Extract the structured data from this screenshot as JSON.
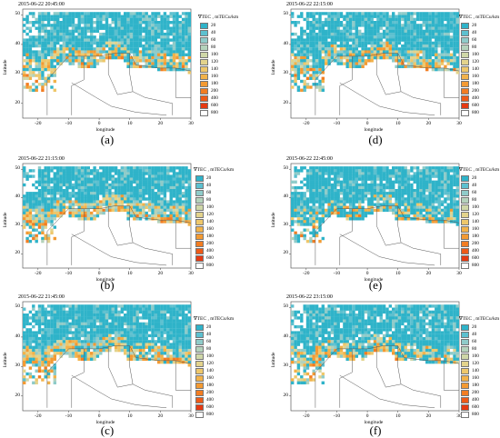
{
  "legend": {
    "title": "∇TEC , mTECu/km",
    "levels": [
      {
        "label": "20",
        "color": "#2fb3c9"
      },
      {
        "label": "40",
        "color": "#5dc0cf"
      },
      {
        "label": "60",
        "color": "#8fcbc9"
      },
      {
        "label": "80",
        "color": "#b4d2bb"
      },
      {
        "label": "100",
        "color": "#cfd7a8"
      },
      {
        "label": "120",
        "color": "#e3d38c"
      },
      {
        "label": "140",
        "color": "#eec76b"
      },
      {
        "label": "160",
        "color": "#f2b24a"
      },
      {
        "label": "180",
        "color": "#f39a33"
      },
      {
        "label": "200",
        "color": "#f27d22"
      },
      {
        "label": "400",
        "color": "#ee5a17"
      },
      {
        "label": "600",
        "color": "#e53a12"
      },
      {
        "label": "800",
        "color": "#ffffff"
      }
    ]
  },
  "axes": {
    "xlabel": "longitude",
    "ylabel": "latitude",
    "xticks": [
      "-20",
      "-10",
      "0",
      "10",
      "20",
      "30"
    ],
    "yticks": [
      "50",
      "40",
      "30",
      "20"
    ]
  },
  "panels": [
    {
      "id": "a",
      "timestamp": "2015-06-22 20:45:00",
      "caption": "(a)",
      "intensity": 0.55
    },
    {
      "id": "d",
      "timestamp": "2015-06-22 22:15:00",
      "caption": "(d)",
      "intensity": 0.5
    },
    {
      "id": "b",
      "timestamp": "2015-06-22 21:15:00",
      "caption": "(b)",
      "intensity": 0.75
    },
    {
      "id": "e",
      "timestamp": "2015-06-22 22:45:00",
      "caption": "(e)",
      "intensity": 0.3
    },
    {
      "id": "c",
      "timestamp": "2015-06-22 21:45:00",
      "caption": "(c)",
      "intensity": 0.6
    },
    {
      "id": "f",
      "timestamp": "2015-06-22 23:15:00",
      "caption": "(f)",
      "intensity": 0.45
    }
  ]
}
